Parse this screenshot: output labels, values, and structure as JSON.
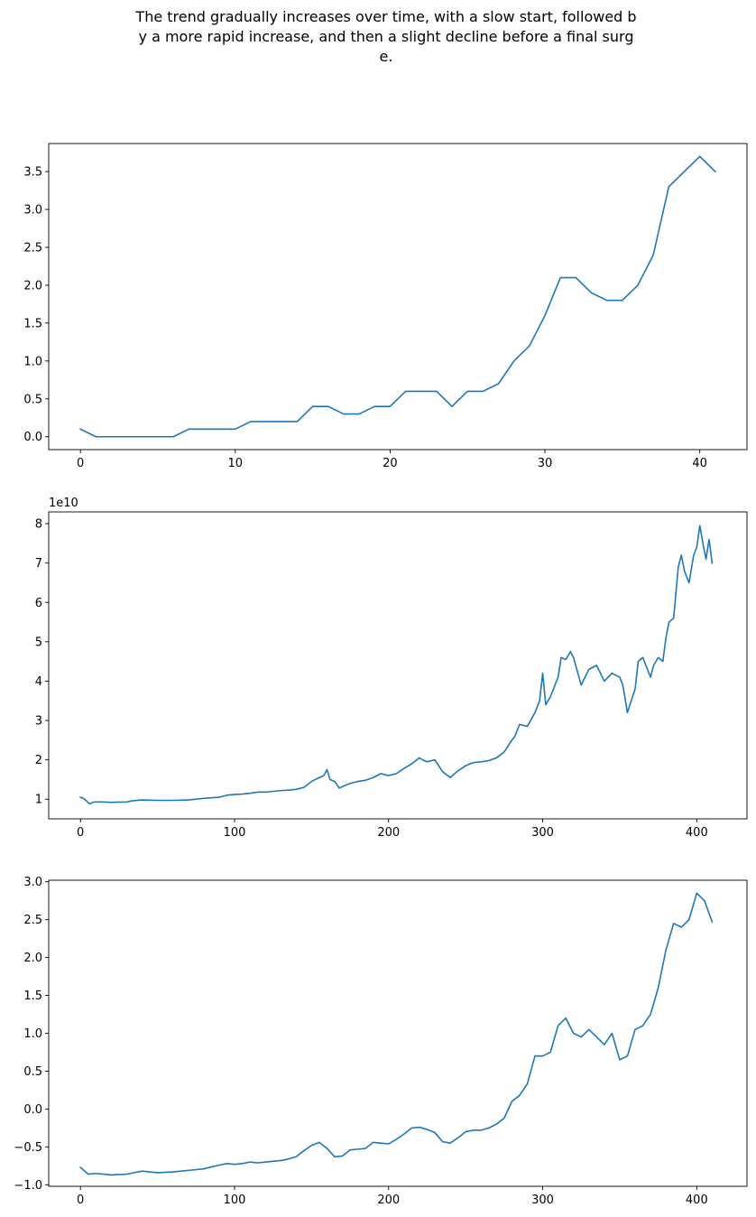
{
  "figure": {
    "title_lines": [
      "The trend gradually increases over time, with a slow start, followed b",
      "y a more rapid increase, and then a slight decline before a final surg",
      "e."
    ],
    "line_color": "#1f77b4"
  },
  "chart_data": [
    {
      "type": "line",
      "x": [
        0,
        1,
        2,
        3,
        4,
        5,
        6,
        7,
        8,
        9,
        10,
        11,
        12,
        13,
        14,
        15,
        16,
        17,
        18,
        19,
        20,
        21,
        22,
        23,
        24,
        25,
        26,
        27,
        28,
        29,
        30,
        31,
        32,
        33,
        34,
        35,
        36,
        37,
        38,
        39,
        40,
        41
      ],
      "y": [
        0.1,
        0.0,
        0.0,
        0.0,
        0.0,
        0.0,
        0.0,
        0.1,
        0.1,
        0.1,
        0.1,
        0.2,
        0.2,
        0.2,
        0.2,
        0.4,
        0.4,
        0.3,
        0.3,
        0.4,
        0.4,
        0.6,
        0.6,
        0.6,
        0.4,
        0.6,
        0.6,
        0.7,
        1.0,
        1.2,
        1.6,
        2.1,
        2.1,
        1.9,
        1.8,
        1.8,
        2.0,
        2.4,
        3.3,
        3.5,
        3.7,
        3.5
      ],
      "xlim": [
        -2.05,
        43.05
      ],
      "ylim": [
        -0.17,
        3.87
      ],
      "xticks": [
        0,
        10,
        20,
        30,
        40
      ],
      "xtick_labels": [
        "0",
        "10",
        "20",
        "30",
        "40"
      ],
      "yticks": [
        0.0,
        0.5,
        1.0,
        1.5,
        2.0,
        2.5,
        3.0,
        3.5
      ],
      "ytick_labels": [
        "0.0",
        "0.5",
        "1.0",
        "1.5",
        "2.0",
        "2.5",
        "3.0",
        "3.5"
      ],
      "offset_text": "",
      "grid": false,
      "xlabel": "",
      "ylabel": "",
      "title": ""
    },
    {
      "type": "line",
      "x": [
        0,
        2,
        4,
        6,
        8,
        10,
        14,
        20,
        30,
        34,
        40,
        50,
        60,
        70,
        80,
        90,
        95,
        100,
        105,
        110,
        115,
        120,
        125,
        130,
        135,
        140,
        145,
        150,
        155,
        158,
        160,
        162,
        165,
        168,
        170,
        175,
        180,
        185,
        190,
        195,
        200,
        205,
        210,
        215,
        220,
        222,
        225,
        230,
        235,
        240,
        242,
        245,
        250,
        255,
        260,
        265,
        270,
        275,
        280,
        282,
        285,
        290,
        295,
        298,
        300,
        302,
        305,
        310,
        312,
        315,
        318,
        320,
        325,
        330,
        335,
        340,
        345,
        350,
        352,
        355,
        360,
        362,
        365,
        370,
        372,
        375,
        378,
        380,
        382,
        385,
        388,
        390,
        392,
        395,
        398,
        400,
        402,
        404,
        406,
        408,
        410
      ],
      "y": [
        1.05,
        1.02,
        0.95,
        0.88,
        0.92,
        0.93,
        0.93,
        0.92,
        0.93,
        0.96,
        0.98,
        0.97,
        0.97,
        0.98,
        1.02,
        1.05,
        1.1,
        1.12,
        1.13,
        1.15,
        1.18,
        1.18,
        1.2,
        1.22,
        1.23,
        1.25,
        1.3,
        1.45,
        1.55,
        1.6,
        1.75,
        1.5,
        1.45,
        1.28,
        1.32,
        1.4,
        1.45,
        1.48,
        1.55,
        1.65,
        1.6,
        1.65,
        1.78,
        1.9,
        2.05,
        2.0,
        1.95,
        2.0,
        1.7,
        1.55,
        1.62,
        1.72,
        1.85,
        1.93,
        1.95,
        1.98,
        2.05,
        2.2,
        2.5,
        2.6,
        2.9,
        2.85,
        3.2,
        3.5,
        4.2,
        3.4,
        3.6,
        4.1,
        4.6,
        4.55,
        4.75,
        4.6,
        3.9,
        4.3,
        4.4,
        4.0,
        4.2,
        4.1,
        3.9,
        3.2,
        3.8,
        4.5,
        4.6,
        4.1,
        4.4,
        4.6,
        4.5,
        5.1,
        5.5,
        5.6,
        6.9,
        7.2,
        6.8,
        6.5,
        7.2,
        7.4,
        7.95,
        7.5,
        7.1,
        7.6,
        7.0
      ],
      "xlim": [
        -20.6,
        432.6
      ],
      "ylim": [
        0.5,
        8.3
      ],
      "xticks": [
        0,
        100,
        200,
        300,
        400
      ],
      "xtick_labels": [
        "0",
        "100",
        "200",
        "300",
        "400"
      ],
      "yticks": [
        1,
        2,
        3,
        4,
        5,
        6,
        7,
        8
      ],
      "ytick_labels": [
        "1",
        "2",
        "3",
        "4",
        "5",
        "6",
        "7",
        "8"
      ],
      "offset_text": "1e10",
      "grid": false,
      "xlabel": "",
      "ylabel": "",
      "title": ""
    },
    {
      "type": "line",
      "x": [
        0,
        5,
        10,
        20,
        30,
        35,
        40,
        50,
        60,
        70,
        80,
        90,
        95,
        100,
        105,
        110,
        115,
        120,
        125,
        130,
        135,
        140,
        145,
        150,
        155,
        160,
        165,
        170,
        175,
        180,
        185,
        190,
        195,
        200,
        205,
        210,
        215,
        220,
        225,
        230,
        235,
        240,
        245,
        250,
        255,
        260,
        265,
        270,
        275,
        280,
        285,
        290,
        295,
        300,
        305,
        310,
        315,
        320,
        325,
        330,
        335,
        340,
        345,
        350,
        355,
        360,
        365,
        370,
        375,
        380,
        385,
        390,
        395,
        400,
        405,
        410
      ],
      "y": [
        -0.77,
        -0.86,
        -0.85,
        -0.87,
        -0.86,
        -0.84,
        -0.82,
        -0.84,
        -0.83,
        -0.81,
        -0.79,
        -0.74,
        -0.72,
        -0.73,
        -0.72,
        -0.7,
        -0.71,
        -0.7,
        -0.69,
        -0.68,
        -0.66,
        -0.63,
        -0.55,
        -0.48,
        -0.44,
        -0.52,
        -0.63,
        -0.62,
        -0.54,
        -0.53,
        -0.52,
        -0.44,
        -0.45,
        -0.46,
        -0.4,
        -0.33,
        -0.25,
        -0.24,
        -0.27,
        -0.31,
        -0.43,
        -0.45,
        -0.38,
        -0.3,
        -0.28,
        -0.28,
        -0.25,
        -0.2,
        -0.12,
        0.1,
        0.18,
        0.33,
        0.7,
        0.7,
        0.75,
        1.1,
        1.2,
        1.0,
        0.95,
        1.05,
        0.95,
        0.85,
        1.0,
        0.65,
        0.7,
        1.05,
        1.1,
        1.25,
        1.6,
        2.1,
        2.45,
        2.4,
        2.5,
        2.85,
        2.75,
        2.47
      ],
      "xlim": [
        -20.6,
        432.6
      ],
      "ylim": [
        -1.02,
        3.02
      ],
      "xticks": [
        0,
        100,
        200,
        300,
        400
      ],
      "xtick_labels": [
        "0",
        "100",
        "200",
        "300",
        "400"
      ],
      "yticks": [
        -1.0,
        -0.5,
        0.0,
        0.5,
        1.0,
        1.5,
        2.0,
        2.5,
        3.0
      ],
      "ytick_labels": [
        "−1.0",
        "−0.5",
        "0.0",
        "0.5",
        "1.0",
        "1.5",
        "2.0",
        "2.5",
        "3.0"
      ],
      "offset_text": "",
      "grid": false,
      "xlabel": "",
      "ylabel": "",
      "title": ""
    }
  ]
}
